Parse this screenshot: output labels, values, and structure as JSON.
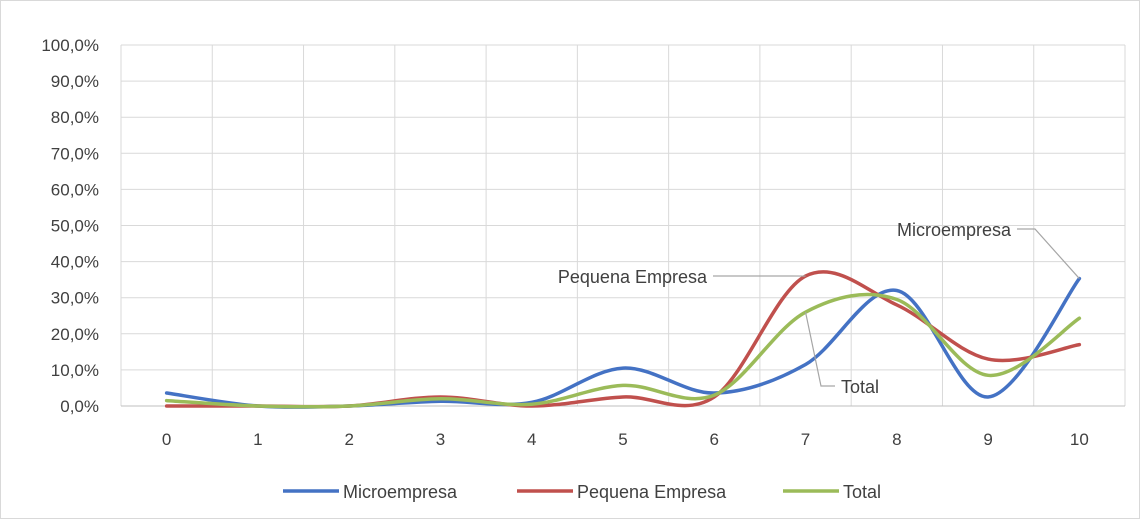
{
  "chart_data": {
    "type": "line",
    "smooth": true,
    "categories": [
      "0",
      "1",
      "2",
      "3",
      "4",
      "5",
      "6",
      "7",
      "8",
      "9",
      "10"
    ],
    "y_ticks": [
      "0,0%",
      "10,0%",
      "20,0%",
      "30,0%",
      "40,0%",
      "50,0%",
      "60,0%",
      "70,0%",
      "80,0%",
      "90,0%",
      "100,0%"
    ],
    "ylim": [
      0,
      100
    ],
    "grid": true,
    "legend": "bottom",
    "series": [
      {
        "name": "Microempresa",
        "color": "#4472c4",
        "values": [
          3.6,
          0,
          0,
          1.3,
          1.0,
          10.5,
          3.6,
          11.5,
          32.0,
          2.5,
          35.3
        ]
      },
      {
        "name": "Pequena Empresa",
        "color": "#c0504d",
        "values": [
          0,
          0,
          0,
          2.5,
          0,
          2.5,
          2.5,
          36.0,
          28.0,
          13.0,
          17.0
        ]
      },
      {
        "name": "Total",
        "color": "#9bbb59",
        "values": [
          1.5,
          0,
          0,
          2.0,
          0.5,
          5.7,
          3.0,
          26.0,
          29.5,
          8.5,
          24.3
        ]
      }
    ],
    "annotations": [
      {
        "text": "Microempresa",
        "series": 0,
        "point": 10
      },
      {
        "text": "Pequena Empresa",
        "series": 1,
        "point": 7
      },
      {
        "text": "Total",
        "series": 2,
        "point": 7
      }
    ]
  }
}
